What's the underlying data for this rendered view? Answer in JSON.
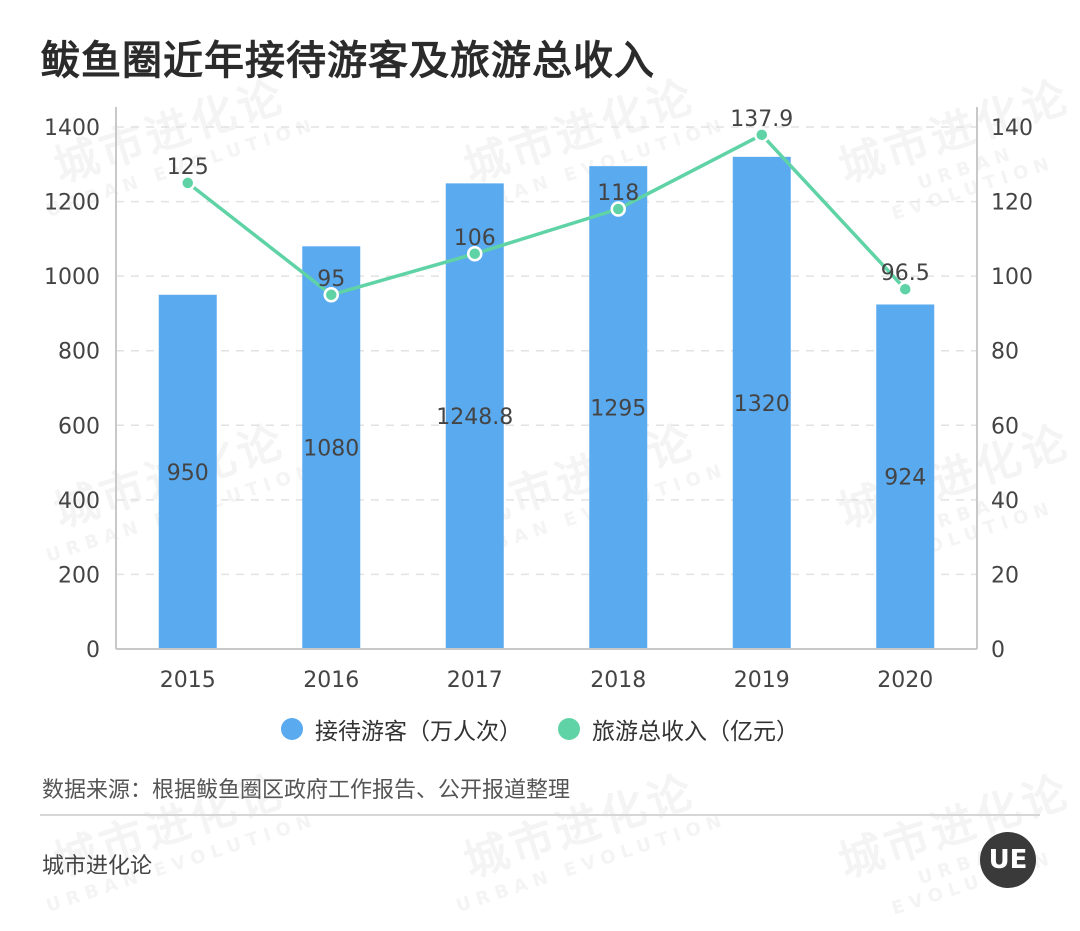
{
  "title": "鲅鱼圈近年接待游客及旅游总收入",
  "watermark": {
    "cn": "城市进化论",
    "en": "URBAN EVOLUTION"
  },
  "chart_data": {
    "type": "bar",
    "categories": [
      "2015",
      "2016",
      "2017",
      "2018",
      "2019",
      "2020"
    ],
    "series": [
      {
        "name": "接待游客（万人次）",
        "type": "bar",
        "axis": "left",
        "values": [
          950,
          1080,
          1248.8,
          1295,
          1320,
          924
        ],
        "labels": [
          "950",
          "1080",
          "1248.8",
          "1295",
          "1320",
          "924"
        ],
        "color": "#5aaaf0"
      },
      {
        "name": "旅游总收入（亿元）",
        "type": "line",
        "axis": "right",
        "values": [
          125,
          95,
          106,
          118,
          137.9,
          96.5
        ],
        "labels": [
          "125",
          "95",
          "106",
          "118",
          "137.9",
          "96.5"
        ],
        "color": "#5fd3a6"
      }
    ],
    "y_left": {
      "min": 0,
      "max": 1400,
      "ticks": [
        "0",
        "200",
        "400",
        "600",
        "800",
        "1000",
        "1200",
        "1400"
      ]
    },
    "y_right": {
      "min": 0,
      "max": 140,
      "ticks": [
        "0",
        "20",
        "40",
        "60",
        "80",
        "100",
        "120",
        "140"
      ]
    },
    "grid": true,
    "legend_position": "bottom"
  },
  "legend": {
    "bar_label": "接待游客（万人次）",
    "line_label": "旅游总收入（亿元）"
  },
  "source": "数据来源：根据鲅鱼圈区政府工作报告、公开报道整理",
  "brand": "城市进化论",
  "logo_text": "UE"
}
